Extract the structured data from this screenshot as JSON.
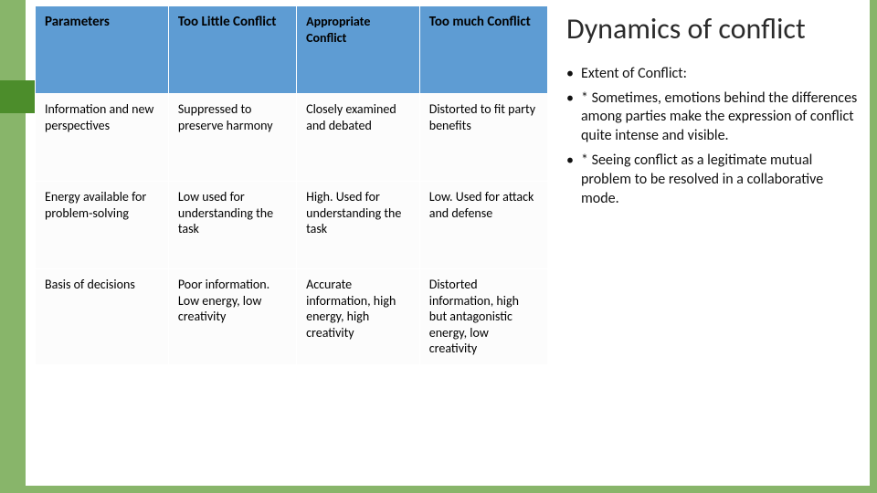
{
  "slide": {
    "border_color": "#88b56a",
    "accent_color": "#4c8d2b",
    "header_bg": "#5e9cd3",
    "title": "Dynamics of conflict"
  },
  "table": {
    "columns": [
      {
        "label": "Parameters",
        "width": "26%"
      },
      {
        "label": "Too Little Conflict",
        "width": "25%"
      },
      {
        "label": "Appropriate Conflict",
        "width": "24%"
      },
      {
        "label": "Too much Conflict",
        "width": "25%"
      }
    ],
    "rows": [
      {
        "param": "Information and new perspectives",
        "too_little": "Suppressed to preserve harmony",
        "appropriate": "Closely examined and debated",
        "too_much": "Distorted to fit party benefits"
      },
      {
        "param": "Energy available for problem-solving",
        "too_little": "Low used for understanding the task",
        "appropriate": "High. Used for understanding the task",
        "too_much": "Low. Used for attack and defense"
      },
      {
        "param": "Basis of decisions",
        "too_little": "Poor information. Low energy, low creativity",
        "appropriate": "Accurate information, high energy, high creativity",
        "too_much": "Distorted information, high but antagonistic energy, low creativity"
      }
    ]
  },
  "bullets": [
    "Extent of Conflict:",
    "* Sometimes, emotions behind the differences among parties make the expression of conflict quite intense and visible.",
    "* Seeing conflict as a legitimate mutual problem to be resolved in a collaborative mode."
  ]
}
